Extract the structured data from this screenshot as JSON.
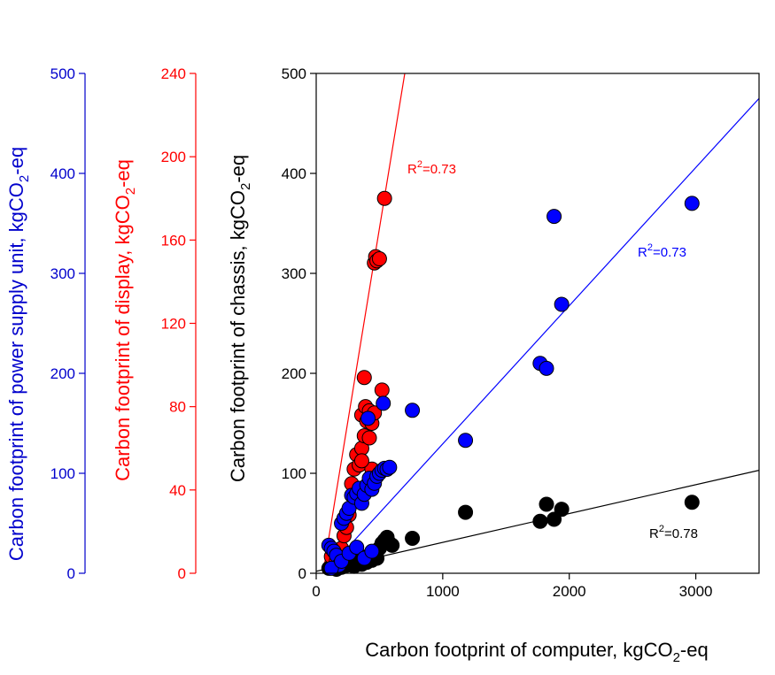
{
  "chart_data": {
    "type": "scatter",
    "xaxis": {
      "label_main": "Carbon footprint of computer, kgCO",
      "label_sub": "2",
      "label_tail": "-eq",
      "range": [
        0,
        3500
      ],
      "ticks": [
        0,
        1000,
        2000,
        3000
      ],
      "tick_labels": [
        "0",
        "1000",
        "2000",
        "3000"
      ]
    },
    "yaxes": [
      {
        "id": "psu",
        "color": "#0000cc",
        "label_main": "Carbon footprint of power supply unit, kgCO",
        "label_sub": "2",
        "label_tail": "-eq",
        "range": [
          0,
          500
        ],
        "ticks": [
          0,
          100,
          200,
          300,
          400,
          500
        ],
        "tick_labels": [
          "0",
          "100",
          "200",
          "300",
          "400",
          "500"
        ]
      },
      {
        "id": "display",
        "color": "#ff0000",
        "label_main": "Carbon footprint of display, kgCO",
        "label_sub": "2",
        "label_tail": "-eq",
        "range": [
          0,
          240
        ],
        "ticks": [
          0,
          40,
          80,
          120,
          160,
          200,
          240
        ],
        "tick_labels": [
          "0",
          "40",
          "80",
          "120",
          "160",
          "200",
          "240"
        ]
      },
      {
        "id": "chassis",
        "color": "#000000",
        "label_main": "Carbon footprint of chassis, kgCO",
        "label_sub": "2",
        "label_tail": "-eq",
        "range": [
          0,
          500
        ],
        "ticks": [
          0,
          100,
          200,
          300,
          400,
          500
        ],
        "tick_labels": [
          "0",
          "100",
          "200",
          "300",
          "400",
          "500"
        ]
      }
    ],
    "series": [
      {
        "name": "Chassis",
        "axis": "chassis",
        "color": "#000000",
        "r2_label": "R",
        "r2_sup": "2",
        "r2_value": "=0.78",
        "fit": {
          "x0": 0,
          "y0": 2,
          "x1": 3500,
          "y1": 103
        },
        "points": [
          [
            100,
            5
          ],
          [
            130,
            8
          ],
          [
            160,
            4
          ],
          [
            180,
            10
          ],
          [
            200,
            6
          ],
          [
            220,
            12
          ],
          [
            240,
            8
          ],
          [
            260,
            15
          ],
          [
            280,
            10
          ],
          [
            300,
            7
          ],
          [
            320,
            12
          ],
          [
            340,
            14
          ],
          [
            360,
            9
          ],
          [
            380,
            16
          ],
          [
            400,
            11
          ],
          [
            420,
            18
          ],
          [
            440,
            13
          ],
          [
            460,
            20
          ],
          [
            480,
            15
          ],
          [
            500,
            25
          ],
          [
            520,
            30
          ],
          [
            540,
            33
          ],
          [
            560,
            36
          ],
          [
            580,
            30
          ],
          [
            600,
            28
          ],
          [
            760,
            35
          ],
          [
            1180,
            61
          ],
          [
            1770,
            52
          ],
          [
            1820,
            69
          ],
          [
            1880,
            54
          ],
          [
            1940,
            64
          ],
          [
            2970,
            71
          ]
        ]
      },
      {
        "name": "Display",
        "axis": "display",
        "color": "#ff0000",
        "r2_label": "R",
        "r2_sup": "2",
        "r2_value": "=0.73",
        "fit": {
          "x0": 0,
          "y0": -20,
          "x1": 700,
          "y1": 240
        },
        "points": [
          [
            120,
            8
          ],
          [
            160,
            6
          ],
          [
            200,
            12
          ],
          [
            220,
            18
          ],
          [
            240,
            22
          ],
          [
            260,
            28
          ],
          [
            280,
            43
          ],
          [
            300,
            50
          ],
          [
            320,
            57
          ],
          [
            340,
            52
          ],
          [
            360,
            60
          ],
          [
            360,
            76
          ],
          [
            380,
            94
          ],
          [
            390,
            80
          ],
          [
            400,
            73
          ],
          [
            420,
            78
          ],
          [
            440,
            72
          ],
          [
            460,
            77
          ],
          [
            460,
            149
          ],
          [
            470,
            152
          ],
          [
            480,
            150
          ],
          [
            500,
            151
          ],
          [
            520,
            88
          ],
          [
            540,
            180
          ],
          [
            380,
            66
          ],
          [
            420,
            65
          ],
          [
            440,
            50
          ],
          [
            360,
            54
          ]
        ]
      },
      {
        "name": "Power supply unit",
        "axis": "psu",
        "color": "#0000ff",
        "r2_label": "R",
        "r2_sup": "2",
        "r2_value": "=0.73",
        "fit": {
          "x0": 100,
          "y0": 5,
          "x1": 3500,
          "y1": 475
        },
        "points": [
          [
            100,
            28
          ],
          [
            120,
            25
          ],
          [
            140,
            22
          ],
          [
            160,
            18
          ],
          [
            180,
            8
          ],
          [
            200,
            50
          ],
          [
            220,
            55
          ],
          [
            240,
            60
          ],
          [
            260,
            65
          ],
          [
            280,
            78
          ],
          [
            300,
            76
          ],
          [
            320,
            80
          ],
          [
            340,
            85
          ],
          [
            360,
            70
          ],
          [
            380,
            79
          ],
          [
            400,
            88
          ],
          [
            420,
            95
          ],
          [
            440,
            84
          ],
          [
            460,
            90
          ],
          [
            480,
            97
          ],
          [
            500,
            100
          ],
          [
            520,
            103
          ],
          [
            540,
            105
          ],
          [
            560,
            104
          ],
          [
            580,
            106
          ],
          [
            410,
            155
          ],
          [
            530,
            170
          ],
          [
            760,
            163
          ],
          [
            1180,
            133
          ],
          [
            1770,
            210
          ],
          [
            1820,
            205
          ],
          [
            1880,
            357
          ],
          [
            1940,
            269
          ],
          [
            2970,
            370
          ],
          [
            120,
            5
          ],
          [
            200,
            12
          ],
          [
            260,
            20
          ],
          [
            320,
            26
          ],
          [
            380,
            15
          ],
          [
            440,
            22
          ]
        ]
      }
    ]
  }
}
